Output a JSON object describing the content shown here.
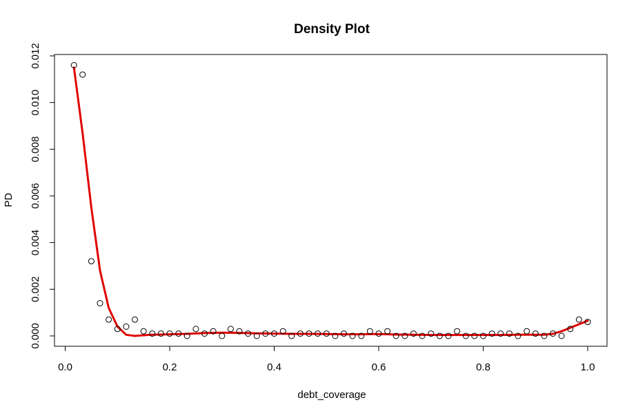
{
  "chart_data": {
    "type": "scatter",
    "title": "Density Plot",
    "xlabel": "debt_coverage",
    "ylabel": "PD",
    "xlim": [
      0,
      1
    ],
    "ylim": [
      0,
      0.012
    ],
    "x_ticks": [
      {
        "value": 0.0,
        "label": "0.0"
      },
      {
        "value": 0.2,
        "label": "0.2"
      },
      {
        "value": 0.4,
        "label": "0.4"
      },
      {
        "value": 0.6,
        "label": "0.6"
      },
      {
        "value": 0.8,
        "label": "0.8"
      },
      {
        "value": 1.0,
        "label": "1.0"
      }
    ],
    "y_ticks": [
      {
        "value": 0.0,
        "label": "0.000"
      },
      {
        "value": 0.002,
        "label": "0.002"
      },
      {
        "value": 0.004,
        "label": "0.004"
      },
      {
        "value": 0.006,
        "label": "0.006"
      },
      {
        "value": 0.008,
        "label": "0.008"
      },
      {
        "value": 0.01,
        "label": "0.010"
      },
      {
        "value": 0.012,
        "label": "0.012"
      }
    ],
    "grid": false,
    "series": [
      {
        "kind": "points",
        "marker": "open-circle",
        "color": "#000000",
        "points": [
          [
            0.0167,
            0.0116
          ],
          [
            0.0333,
            0.0112
          ],
          [
            0.05,
            0.0032
          ],
          [
            0.0667,
            0.0014
          ],
          [
            0.0833,
            0.0007
          ],
          [
            0.1,
            0.0003
          ],
          [
            0.1167,
            0.0004
          ],
          [
            0.1333,
            0.0007
          ],
          [
            0.15,
            0.0002
          ],
          [
            0.1667,
            0.0001
          ],
          [
            0.1833,
            0.0001
          ],
          [
            0.2,
            0.0001
          ],
          [
            0.2167,
            0.0001
          ],
          [
            0.2333,
            0.0
          ],
          [
            0.25,
            0.0003
          ],
          [
            0.2667,
            0.0001
          ],
          [
            0.2833,
            0.0002
          ],
          [
            0.3,
            0.0
          ],
          [
            0.3167,
            0.0003
          ],
          [
            0.3333,
            0.0002
          ],
          [
            0.35,
            0.0001
          ],
          [
            0.3667,
            0.0
          ],
          [
            0.3833,
            0.0001
          ],
          [
            0.4,
            0.0001
          ],
          [
            0.4167,
            0.0002
          ],
          [
            0.4333,
            0.0
          ],
          [
            0.45,
            0.0001
          ],
          [
            0.4667,
            0.0001
          ],
          [
            0.4833,
            0.0001
          ],
          [
            0.5,
            0.0001
          ],
          [
            0.5167,
            0.0
          ],
          [
            0.5333,
            0.0001
          ],
          [
            0.55,
            0.0
          ],
          [
            0.5667,
            0.0
          ],
          [
            0.5833,
            0.0002
          ],
          [
            0.6,
            0.0001
          ],
          [
            0.6167,
            0.0002
          ],
          [
            0.6333,
            0.0
          ],
          [
            0.65,
            0.0
          ],
          [
            0.6667,
            0.0001
          ],
          [
            0.6833,
            0.0
          ],
          [
            0.7,
            0.0001
          ],
          [
            0.7167,
            0.0
          ],
          [
            0.7333,
            0.0
          ],
          [
            0.75,
            0.0002
          ],
          [
            0.7667,
            0.0
          ],
          [
            0.7833,
            0.0
          ],
          [
            0.8,
            0.0
          ],
          [
            0.8167,
            0.0001
          ],
          [
            0.8333,
            0.0001
          ],
          [
            0.85,
            0.0001
          ],
          [
            0.8667,
            0.0
          ],
          [
            0.8833,
            0.0002
          ],
          [
            0.9,
            0.0001
          ],
          [
            0.9167,
            0.0
          ],
          [
            0.9333,
            0.0001
          ],
          [
            0.95,
            0.0
          ],
          [
            0.9667,
            0.0003
          ],
          [
            0.9833,
            0.0007
          ],
          [
            1.0,
            0.0006
          ]
        ]
      },
      {
        "kind": "line",
        "color": "#e00000",
        "points": [
          [
            0.0167,
            0.0115
          ],
          [
            0.0333,
            0.0087
          ],
          [
            0.05,
            0.0055
          ],
          [
            0.0667,
            0.0028
          ],
          [
            0.0833,
            0.0012
          ],
          [
            0.1,
            0.0004
          ],
          [
            0.1167,
            5e-05
          ],
          [
            0.1333,
            0.0
          ],
          [
            0.15,
            3e-05
          ],
          [
            0.1667,
            5e-05
          ],
          [
            0.1833,
            6e-05
          ],
          [
            0.2,
            7e-05
          ],
          [
            0.2333,
            9e-05
          ],
          [
            0.2667,
            0.00012
          ],
          [
            0.3,
            0.00014
          ],
          [
            0.3333,
            0.00013
          ],
          [
            0.3667,
            0.00011
          ],
          [
            0.4,
            0.0001
          ],
          [
            0.4333,
            9e-05
          ],
          [
            0.4667,
            9e-05
          ],
          [
            0.5,
            8e-05
          ],
          [
            0.5333,
            7e-05
          ],
          [
            0.5667,
            7e-05
          ],
          [
            0.6,
            8e-05
          ],
          [
            0.6333,
            6e-05
          ],
          [
            0.6667,
            5e-05
          ],
          [
            0.7,
            4e-05
          ],
          [
            0.7333,
            4e-05
          ],
          [
            0.7667,
            4e-05
          ],
          [
            0.8,
            4e-05
          ],
          [
            0.8333,
            4e-05
          ],
          [
            0.8667,
            5e-05
          ],
          [
            0.9,
            5e-05
          ],
          [
            0.9167,
            5e-05
          ],
          [
            0.9333,
            9e-05
          ],
          [
            0.95,
            0.0002
          ],
          [
            0.9667,
            0.00035
          ],
          [
            0.9833,
            0.0005
          ],
          [
            1.0,
            0.00065
          ]
        ]
      }
    ]
  }
}
